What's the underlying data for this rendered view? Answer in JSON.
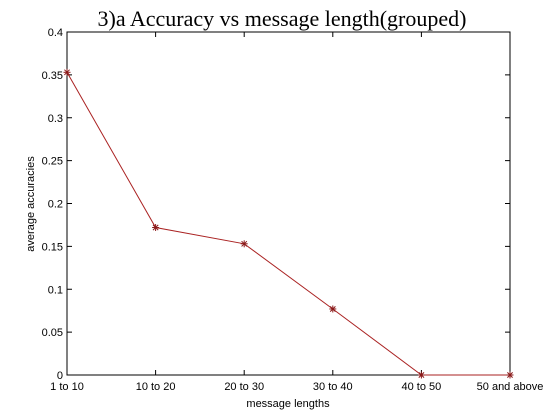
{
  "chart_data": {
    "type": "line",
    "title": "3)a  Accuracy vs message length(grouped)",
    "xlabel": "message lengths",
    "ylabel": "average accuracies",
    "categories": [
      "1 to 10",
      "10 to 20",
      "20 to 30",
      "30 to 40",
      "40 to 50",
      "50 and above"
    ],
    "values": [
      0.353,
      0.172,
      0.153,
      0.077,
      0.0,
      0.0
    ],
    "ylim": [
      0,
      0.4
    ],
    "yticks": [
      "0",
      "0.05",
      "0.1",
      "0.15",
      "0.2",
      "0.25",
      "0.3",
      "0.35",
      "0.4"
    ],
    "grid": false,
    "colors": {
      "line": "#aa2222",
      "marker": "#8b1a1a"
    }
  }
}
